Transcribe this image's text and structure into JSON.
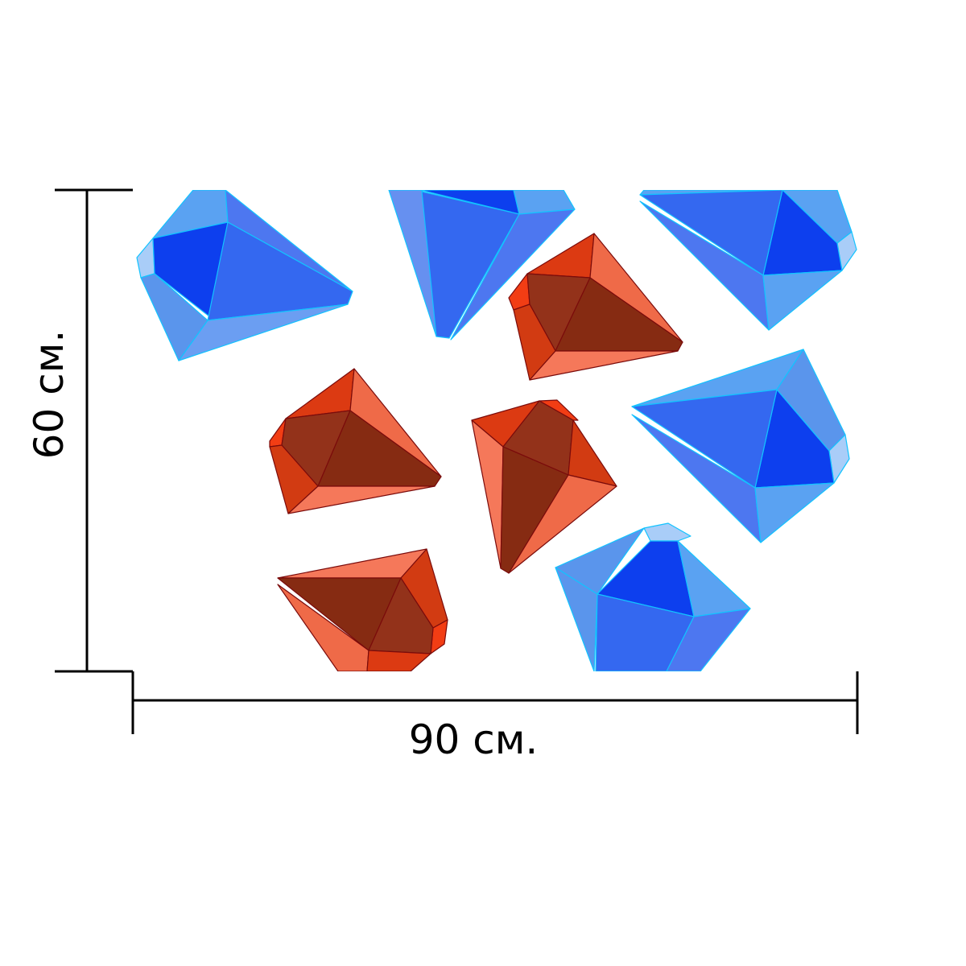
{
  "dimensions": {
    "height_label": "60 см.",
    "width_label": "90 см."
  },
  "colors": {
    "background": "#ffffff",
    "line": "#000000",
    "blue_edge": "#00c8ff",
    "red_edge": "#7a0b0b"
  },
  "gems": [
    {
      "color": "blue"
    },
    {
      "color": "blue"
    },
    {
      "color": "blue"
    },
    {
      "color": "red"
    },
    {
      "color": "red"
    },
    {
      "color": "red"
    },
    {
      "color": "blue"
    },
    {
      "color": "red"
    },
    {
      "color": "blue"
    }
  ]
}
